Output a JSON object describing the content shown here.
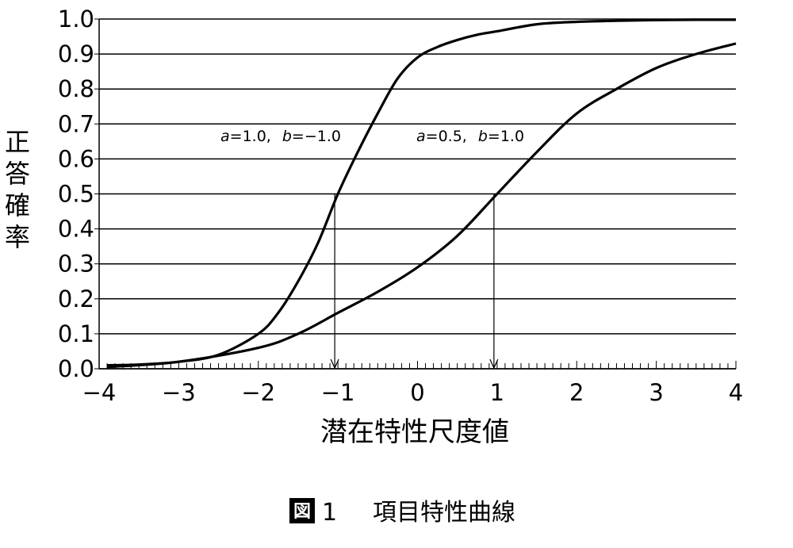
{
  "chart_data": {
    "type": "line",
    "title": "",
    "xlabel": "潜在特性尺度値",
    "ylabel": "正答確率",
    "xlim": [
      -4,
      4
    ],
    "ylim": [
      0,
      1
    ],
    "x_ticks": [
      -4,
      -3,
      -2,
      -1,
      0,
      1,
      2,
      3,
      4
    ],
    "x_tick_labels": [
      "−4",
      "−3",
      "−2",
      "−1",
      "0",
      "1",
      "2",
      "3",
      "4"
    ],
    "y_ticks": [
      0,
      0.1,
      0.2,
      0.3,
      0.4,
      0.5,
      0.6,
      0.7,
      0.8,
      0.9,
      1.0
    ],
    "y_tick_labels": [
      "0.0",
      "0.1",
      "0.2",
      "0.3",
      "0.4",
      "0.5",
      "0.6",
      "0.7",
      "0.8",
      "0.9",
      "1.0"
    ],
    "grid": "horizontal",
    "series": [
      {
        "annotation": {
          "a_label": "a",
          "a_value": "=1.0,",
          "b_label": "b",
          "b_value": "=−1.0"
        },
        "x": [
          -3.9,
          -3.5,
          -3.0,
          -2.5,
          -2.0,
          -1.75,
          -1.5,
          -1.25,
          -1.0,
          -0.75,
          -0.5,
          -0.25,
          0.0,
          0.25,
          0.5,
          0.75,
          1.0,
          1.5,
          2.0,
          2.5,
          3.0,
          3.5,
          4.0
        ],
        "y": [
          0.01,
          0.012,
          0.02,
          0.04,
          0.1,
          0.16,
          0.25,
          0.36,
          0.5,
          0.62,
          0.73,
          0.83,
          0.89,
          0.92,
          0.94,
          0.955,
          0.965,
          0.985,
          0.992,
          0.995,
          0.997,
          0.998,
          0.998
        ]
      },
      {
        "annotation": {
          "a_label": "a",
          "a_value": "=0.5,",
          "b_label": "b",
          "b_value": "=1.0"
        },
        "x": [
          -3.9,
          -3.0,
          -2.0,
          -1.5,
          -1.0,
          -0.5,
          0.0,
          0.5,
          1.0,
          1.5,
          2.0,
          2.5,
          3.0,
          3.5,
          4.0
        ],
        "y": [
          0.005,
          0.02,
          0.06,
          0.1,
          0.16,
          0.22,
          0.29,
          0.38,
          0.5,
          0.62,
          0.73,
          0.8,
          0.86,
          0.9,
          0.93
        ]
      }
    ],
    "b_markers": [
      -1.0,
      1.0
    ]
  },
  "caption": {
    "badge": "図",
    "number": "1",
    "text": "項目特性曲線"
  }
}
